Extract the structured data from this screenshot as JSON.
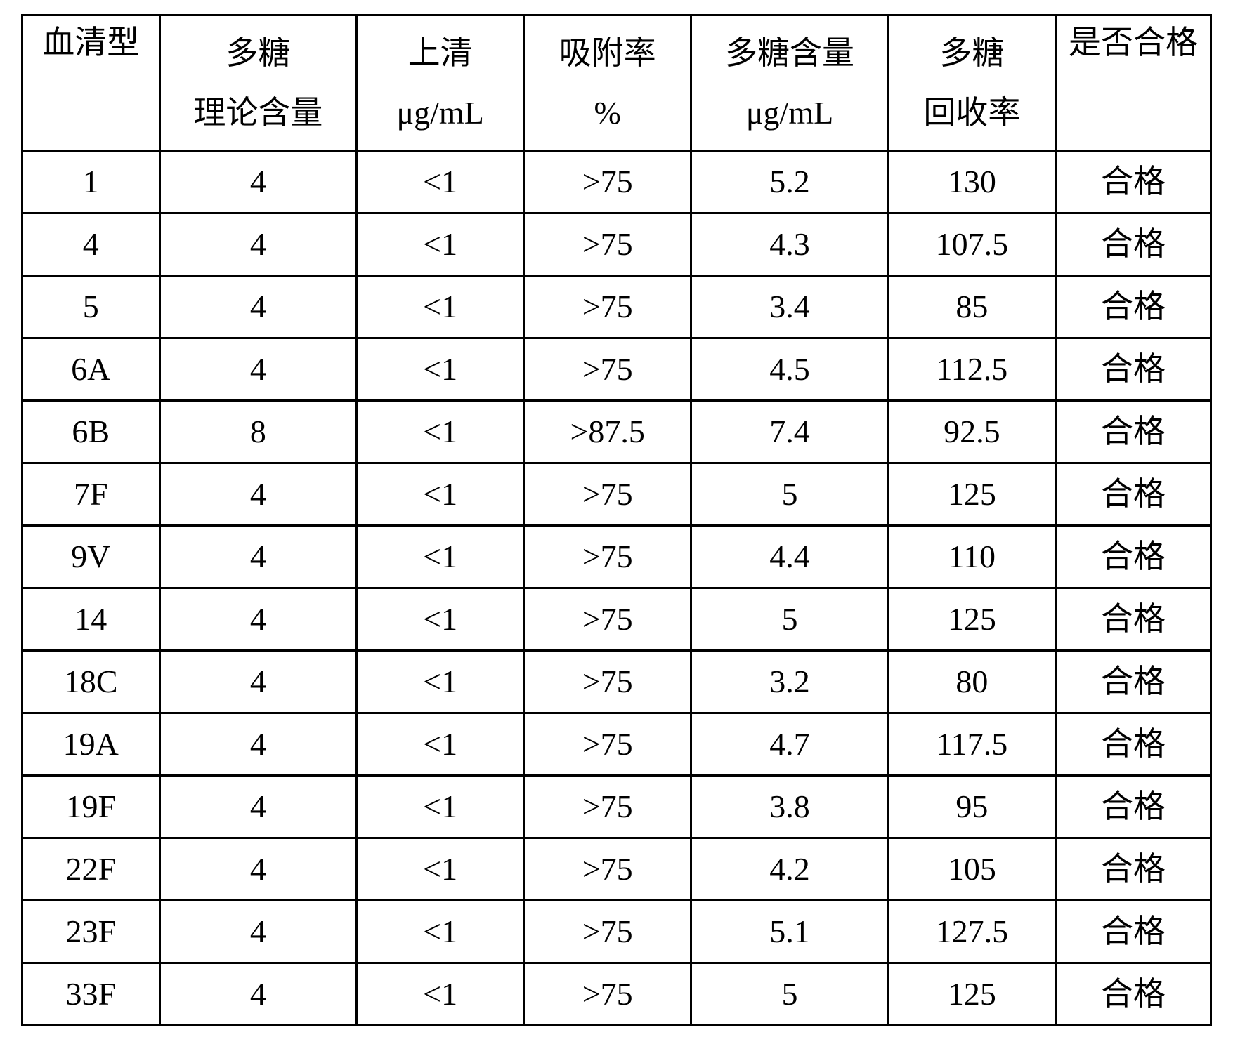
{
  "table": {
    "border_color": "#000000",
    "background_color": "#ffffff",
    "text_color": "#000000",
    "font_size_pt": 34,
    "columns": [
      {
        "line1": "血清型",
        "line2": null,
        "align_top": true
      },
      {
        "line1": "多糖",
        "line2": "理论含量",
        "align_top": false
      },
      {
        "line1": "上清",
        "line2": "μg/mL",
        "align_top": false
      },
      {
        "line1": "吸附率",
        "line2": "%",
        "align_top": false
      },
      {
        "line1": "多糖含量",
        "line2": "μg/mL",
        "align_top": false
      },
      {
        "line1": "多糖",
        "line2": "回收率",
        "align_top": false
      },
      {
        "line1": "是否合格",
        "line2": null,
        "align_top": true
      }
    ],
    "rows": [
      [
        "1",
        "4",
        "<1",
        ">75",
        "5.2",
        "130",
        "合格"
      ],
      [
        "4",
        "4",
        "<1",
        ">75",
        "4.3",
        "107.5",
        "合格"
      ],
      [
        "5",
        "4",
        "<1",
        ">75",
        "3.4",
        "85",
        "合格"
      ],
      [
        "6A",
        "4",
        "<1",
        ">75",
        "4.5",
        "112.5",
        "合格"
      ],
      [
        "6B",
        "8",
        "<1",
        ">87.5",
        "7.4",
        "92.5",
        "合格"
      ],
      [
        "7F",
        "4",
        "<1",
        ">75",
        "5",
        "125",
        "合格"
      ],
      [
        "9V",
        "4",
        "<1",
        ">75",
        "4.4",
        "110",
        "合格"
      ],
      [
        "14",
        "4",
        "<1",
        ">75",
        "5",
        "125",
        "合格"
      ],
      [
        "18C",
        "4",
        "<1",
        ">75",
        "3.2",
        "80",
        "合格"
      ],
      [
        "19A",
        "4",
        "<1",
        ">75",
        "4.7",
        "117.5",
        "合格"
      ],
      [
        "19F",
        "4",
        "<1",
        ">75",
        "3.8",
        "95",
        "合格"
      ],
      [
        "22F",
        "4",
        "<1",
        ">75",
        "4.2",
        "105",
        "合格"
      ],
      [
        "23F",
        "4",
        "<1",
        ">75",
        "5.1",
        "127.5",
        "合格"
      ],
      [
        "33F",
        "4",
        "<1",
        ">75",
        "5",
        "125",
        "合格"
      ]
    ]
  }
}
